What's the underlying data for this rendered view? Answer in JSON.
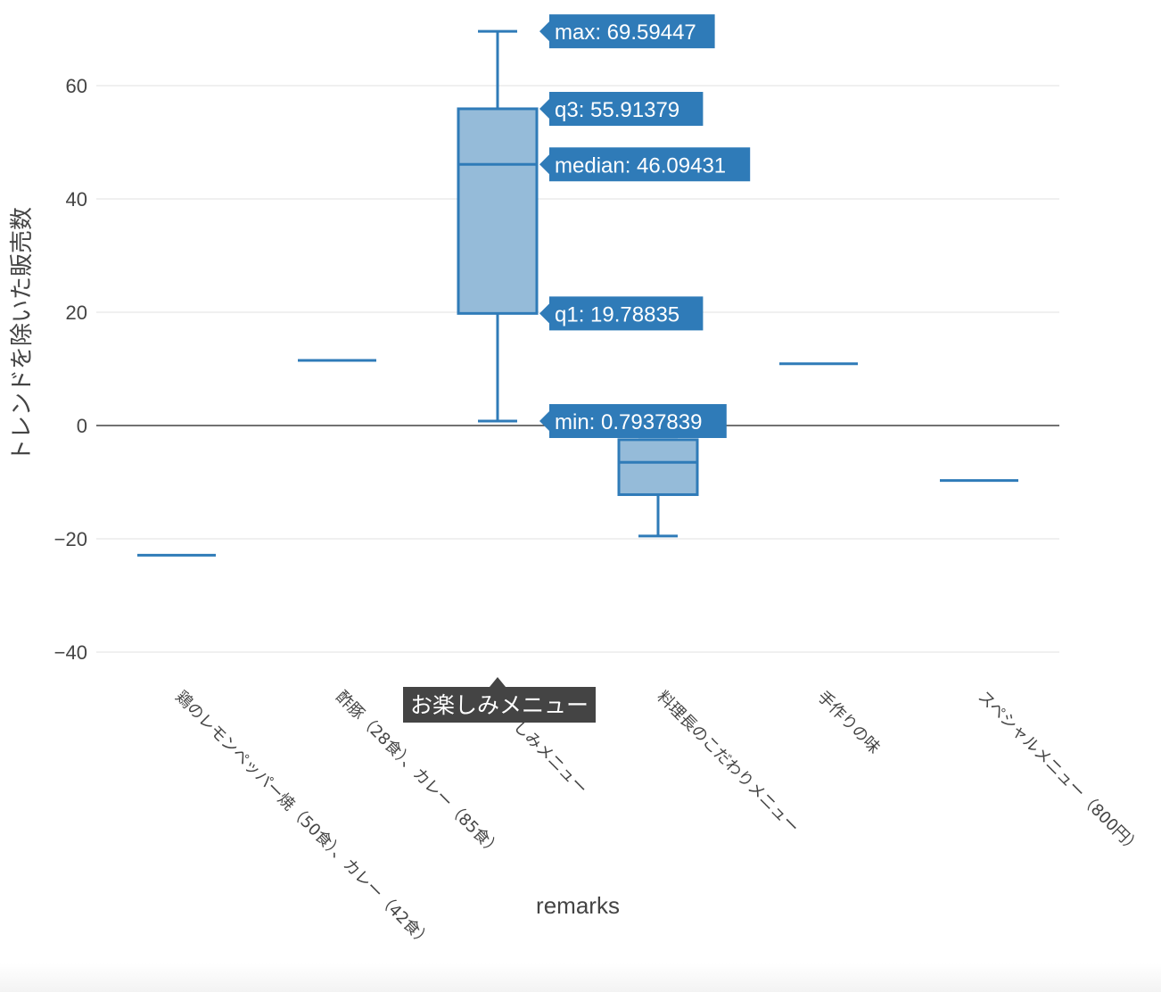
{
  "chart_data": {
    "type": "box",
    "xlabel": "remarks",
    "ylabel": "トレンドを除いた販売数",
    "ylim": [
      -44,
      72
    ],
    "yticks": [
      60,
      40,
      20,
      0,
      -20,
      -40
    ],
    "ytick_labels": [
      "60",
      "40",
      "20",
      "0",
      "−20",
      "−40"
    ],
    "color": "#2f7bb8",
    "fill_color": "#95bbd9",
    "categories": [
      "鶏のレモンペッパー焼（50食）、カレー（42食）",
      "酢豚（28食）、カレー（85食）",
      "お楽しみメニュー",
      "料理長のこだわりメニュー",
      "手作りの味",
      "スペシャルメニュー（800円）"
    ],
    "category_labels_visible": [
      "鶏のレモンペッパー焼（50食）、カレー（42食）",
      "酢豚（28食）、カレー（85食）",
      "しみメニュー",
      "料理長のこだわりメニュー",
      "手作りの味",
      "スペシャルメニュー（800円）"
    ],
    "boxes": [
      {
        "min": -22.9,
        "q1": -22.9,
        "median": -22.9,
        "q3": -22.9,
        "max": -22.9
      },
      {
        "min": 11.5,
        "q1": 11.5,
        "median": 11.5,
        "q3": 11.5,
        "max": 11.5
      },
      {
        "min": 0.7937839,
        "q1": 19.78835,
        "median": 46.09431,
        "q3": 55.91379,
        "max": 69.59447
      },
      {
        "min": -19.5,
        "q1": -12.2,
        "median": -6.5,
        "q3": -2.5,
        "max": -2.5
      },
      {
        "min": 10.9,
        "q1": 10.9,
        "median": 10.9,
        "q3": 10.9,
        "max": 10.9
      },
      {
        "min": -9.7,
        "q1": -9.7,
        "median": -9.7,
        "q3": -9.7,
        "max": -9.7
      }
    ],
    "hover": {
      "category_index": 2,
      "category_label": "お楽しみメニュー",
      "labels": [
        {
          "key": "max",
          "text": "max: 69.59447"
        },
        {
          "key": "q3",
          "text": "q3: 55.91379"
        },
        {
          "key": "median",
          "text": "median: 46.09431"
        },
        {
          "key": "q1",
          "text": "q1: 19.78835"
        },
        {
          "key": "min",
          "text": "min: 0.7937839"
        }
      ]
    }
  }
}
